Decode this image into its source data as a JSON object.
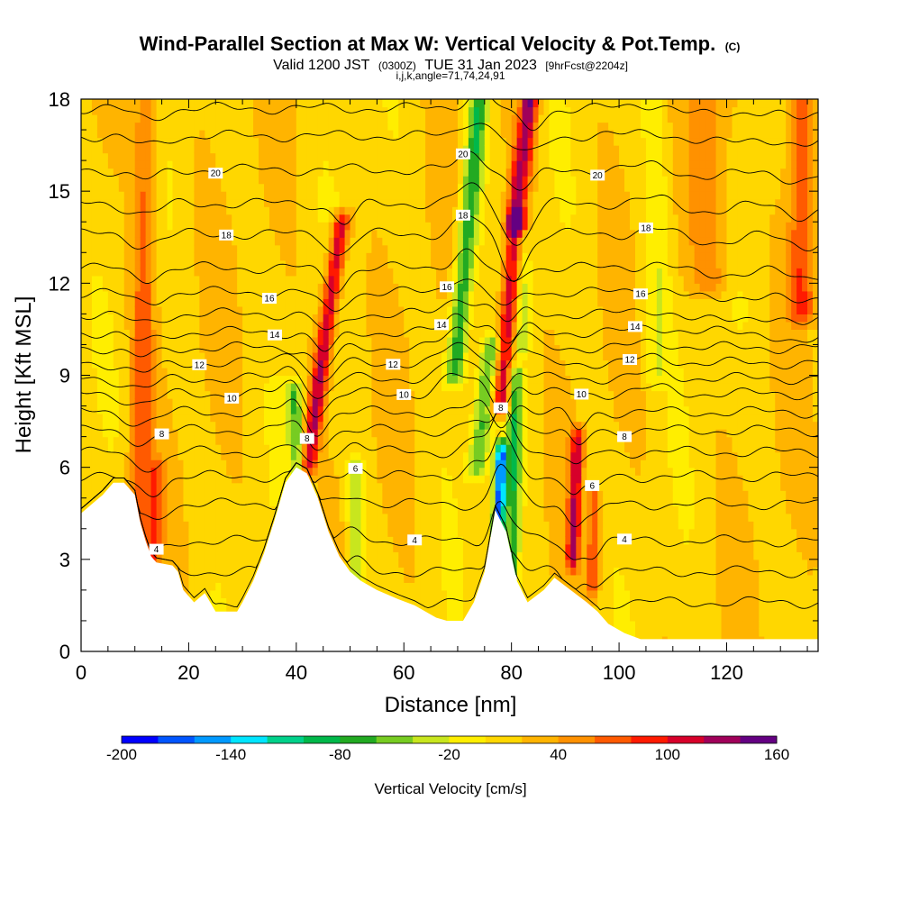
{
  "chart_data": {
    "type": "heatmap",
    "title": "Wind-Parallel Section at Max W: Vertical Velocity & Pot.Temp.",
    "title_mark": "(C)",
    "subtitle": {
      "prefix": "Valid 1200 JST",
      "utc": "(0300Z)",
      "date": "TUE 31 Jan 2023",
      "forecast": "[9hrFcst@2204z]"
    },
    "index_line": "i,j,k,angle=71,74,24,91",
    "xlabel": "Distance [nm]",
    "ylabel": "Height [Kft MSL]",
    "xlim": [
      0,
      137
    ],
    "ylim": [
      0,
      18
    ],
    "x_ticks": [
      0,
      20,
      40,
      60,
      80,
      100,
      120
    ],
    "y_ticks": [
      0,
      3,
      6,
      9,
      12,
      15,
      18
    ],
    "colorbar": {
      "title": "Vertical Velocity [cm/s]",
      "levels": [
        -200,
        -180,
        -160,
        -140,
        -120,
        -100,
        -80,
        -60,
        -40,
        -20,
        0,
        20,
        40,
        60,
        80,
        100,
        120,
        140,
        160
      ],
      "tick_labels": [
        "-200",
        "-140",
        "-80",
        "-20",
        "40",
        "100",
        "160"
      ],
      "colors": [
        "#0000ff",
        "#0055ff",
        "#0099ff",
        "#00e5ff",
        "#00d18a",
        "#00b84a",
        "#22aa22",
        "#77cc22",
        "#c8e61e",
        "#ffee00",
        "#ffd700",
        "#ffb400",
        "#ff9100",
        "#ff5a00",
        "#ff1a00",
        "#d7002a",
        "#a0005a",
        "#640082"
      ]
    },
    "terrain_kft": [
      [
        0,
        4.5
      ],
      [
        2,
        4.8
      ],
      [
        4,
        5.1
      ],
      [
        6,
        5.5
      ],
      [
        8,
        5.5
      ],
      [
        10,
        5.1
      ],
      [
        11,
        4.2
      ],
      [
        12,
        3.6
      ],
      [
        13,
        3.1
      ],
      [
        14,
        2.9
      ],
      [
        17,
        2.8
      ],
      [
        18,
        2.6
      ],
      [
        19,
        2.0
      ],
      [
        21,
        1.6
      ],
      [
        23,
        1.9
      ],
      [
        25,
        1.3
      ],
      [
        29,
        1.3
      ],
      [
        30,
        1.6
      ],
      [
        32,
        2.3
      ],
      [
        34,
        3.2
      ],
      [
        36,
        4.3
      ],
      [
        38,
        5.5
      ],
      [
        40,
        6.0
      ],
      [
        42,
        5.8
      ],
      [
        44,
        5.0
      ],
      [
        46,
        3.9
      ],
      [
        48,
        3.1
      ],
      [
        50,
        2.6
      ],
      [
        52,
        2.3
      ],
      [
        55,
        2.0
      ],
      [
        59,
        1.7
      ],
      [
        62,
        1.5
      ],
      [
        66,
        1.1
      ],
      [
        68,
        1.0
      ],
      [
        71,
        1.0
      ],
      [
        73,
        1.6
      ],
      [
        75,
        2.6
      ],
      [
        77,
        4.6
      ],
      [
        79,
        3.9
      ],
      [
        81,
        2.3
      ],
      [
        83,
        1.6
      ],
      [
        86,
        2.0
      ],
      [
        88,
        2.4
      ],
      [
        91,
        2.0
      ],
      [
        94,
        1.6
      ],
      [
        96,
        1.3
      ],
      [
        98,
        0.9
      ],
      [
        101,
        0.6
      ],
      [
        104,
        0.4
      ],
      [
        137,
        0.4
      ]
    ],
    "wind_bands": [
      {
        "x": 10.5,
        "x6": 11,
        "tilt": 0.1,
        "w": 2.2,
        "amp": 55,
        "ylo": 2,
        "yhi": 18
      },
      {
        "x": 13.5,
        "x6": 14,
        "tilt": 0.2,
        "w": 1.5,
        "amp": 45,
        "ylo": 2.5,
        "yhi": 6
      },
      {
        "x": 44,
        "x6": 42,
        "tilt": 0.8,
        "w": 1.6,
        "amp": 110,
        "ylo": 6,
        "yhi": 14
      },
      {
        "x": 38.5,
        "x6": 40.5,
        "tilt": -0.4,
        "w": 1.5,
        "amp": -70,
        "ylo": 5,
        "yhi": 8.5
      },
      {
        "x": 51,
        "x6": 51,
        "tilt": 0,
        "w": 1.5,
        "amp": -55,
        "ylo": 2.5,
        "yhi": 6
      },
      {
        "x": 70,
        "x6": 68,
        "tilt": 0.5,
        "w": 1.8,
        "amp": -95,
        "ylo": 9,
        "yhi": 18
      },
      {
        "x": 77,
        "x6": 73.5,
        "tilt": 0.7,
        "w": 1.8,
        "amp": -75,
        "ylo": 6,
        "yhi": 10
      },
      {
        "x": 79,
        "x6": 78,
        "tilt": 0.2,
        "w": 1.1,
        "amp": -190,
        "ylo": 3.5,
        "yhi": 6.5
      },
      {
        "x": 79.5,
        "x6": 77,
        "tilt": 0.5,
        "w": 1.8,
        "amp": 160,
        "ylo": 14,
        "yhi": 18
      },
      {
        "x": 79.5,
        "x6": 77,
        "tilt": 0.5,
        "w": 1.8,
        "amp": 115,
        "ylo": 8,
        "yhi": 14
      },
      {
        "x": 80.8,
        "x6": 80.5,
        "tilt": 0.1,
        "w": 1.3,
        "amp": -85,
        "ylo": 2,
        "yhi": 9
      },
      {
        "x": 82,
        "x6": 82,
        "tilt": 0,
        "w": 1.5,
        "amp": -55,
        "ylo": 10,
        "yhi": 18
      },
      {
        "x": 93,
        "x6": 92,
        "tilt": 0.2,
        "w": 1.2,
        "amp": 95,
        "ylo": 3,
        "yhi": 7
      },
      {
        "x": 96,
        "x6": 95.5,
        "tilt": 0.1,
        "w": 1.1,
        "amp": 65,
        "ylo": 2,
        "yhi": 5
      },
      {
        "x": 107,
        "x6": 107,
        "tilt": 0,
        "w": 2.5,
        "amp": -30,
        "ylo": 9,
        "yhi": 18
      },
      {
        "x": 134,
        "x6": 134,
        "tilt": 0,
        "w": 2.5,
        "amp": 65,
        "ylo": 11,
        "yhi": 18
      },
      {
        "x": 117,
        "x6": 117,
        "tilt": 0,
        "w": 4,
        "amp": 40,
        "ylo": 12,
        "yhi": 18
      }
    ],
    "theta_contours": [
      {
        "y0": 1.6,
        "label": ""
      },
      {
        "y0": 2.6,
        "label": ""
      },
      {
        "y0": 3.6,
        "label": "4",
        "lx": [
          14,
          62,
          101
        ]
      },
      {
        "y0": 4.8,
        "label": ""
      },
      {
        "y0": 5.7,
        "label": "6",
        "lx": [
          51,
          95
        ]
      },
      {
        "y0": 6.5,
        "label": ""
      },
      {
        "y0": 7.2,
        "label": "8",
        "lx": [
          15,
          42,
          78,
          101
        ]
      },
      {
        "y0": 7.8,
        "label": ""
      },
      {
        "y0": 8.4,
        "label": "10",
        "lx": [
          28,
          60,
          93
        ]
      },
      {
        "y0": 8.9,
        "label": ""
      },
      {
        "y0": 9.4,
        "label": "12",
        "lx": [
          22,
          58,
          102
        ]
      },
      {
        "y0": 9.9,
        "label": ""
      },
      {
        "y0": 10.4,
        "label": "14",
        "lx": [
          36,
          67,
          103
        ]
      },
      {
        "y0": 11.0,
        "label": ""
      },
      {
        "y0": 11.7,
        "label": "16",
        "lx": [
          35,
          68,
          104
        ]
      },
      {
        "y0": 12.5,
        "label": ""
      },
      {
        "y0": 13.6,
        "label": "18",
        "lx": [
          27,
          71,
          105
        ]
      },
      {
        "y0": 14.6,
        "label": ""
      },
      {
        "y0": 15.7,
        "label": "20",
        "lx": [
          25,
          71,
          96
        ]
      },
      {
        "y0": 16.8,
        "label": ""
      },
      {
        "y0": 17.7,
        "label": ""
      }
    ]
  }
}
